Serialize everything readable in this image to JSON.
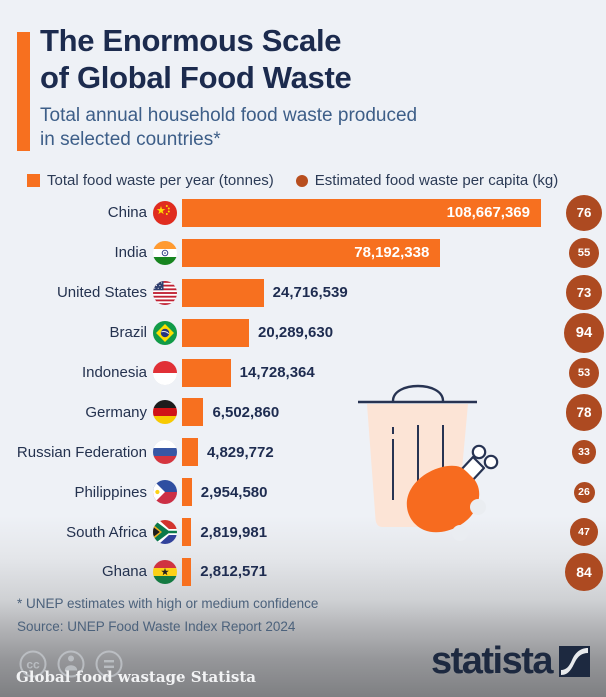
{
  "header": {
    "title_line1": "The Enormous Scale",
    "title_line2": "of Global Food Waste",
    "subtitle_line1": "Total annual household food waste produced",
    "subtitle_line2": "in selected countries*"
  },
  "legend": {
    "bar_label": "Total food waste per year (tonnes)",
    "circle_label": "Estimated food waste per capita (kg)"
  },
  "chart_data": {
    "type": "bar",
    "orientation": "horizontal",
    "title": "The Enormous Scale of Global Food Waste",
    "subtitle": "Total annual household food waste produced in selected countries*",
    "categories": [
      "China",
      "India",
      "United States",
      "Brazil",
      "Indonesia",
      "Germany",
      "Russian Federation",
      "Philippines",
      "South Africa",
      "Ghana"
    ],
    "series": [
      {
        "name": "Total food waste per year (tonnes)",
        "values": [
          108667369,
          78192338,
          24716539,
          20289630,
          14728364,
          6502860,
          4829772,
          2954580,
          2819981,
          2812571
        ]
      },
      {
        "name": "Estimated food waste per capita (kg)",
        "values": [
          76,
          55,
          73,
          94,
          53,
          78,
          33,
          26,
          47,
          84
        ]
      }
    ],
    "max_tonnes": 108667369,
    "rows": [
      {
        "country": "China",
        "flag": "cn",
        "tonnes": 108667369,
        "tonnes_label": "108,667,369",
        "per_capita": 76,
        "value_inside_bar": true
      },
      {
        "country": "India",
        "flag": "in",
        "tonnes": 78192338,
        "tonnes_label": "78,192,338",
        "per_capita": 55,
        "value_inside_bar": true
      },
      {
        "country": "United States",
        "flag": "us",
        "tonnes": 24716539,
        "tonnes_label": "24,716,539",
        "per_capita": 73,
        "value_inside_bar": false
      },
      {
        "country": "Brazil",
        "flag": "br",
        "tonnes": 20289630,
        "tonnes_label": "20,289,630",
        "per_capita": 94,
        "value_inside_bar": false
      },
      {
        "country": "Indonesia",
        "flag": "id",
        "tonnes": 14728364,
        "tonnes_label": "14,728,364",
        "per_capita": 53,
        "value_inside_bar": false
      },
      {
        "country": "Germany",
        "flag": "de",
        "tonnes": 6502860,
        "tonnes_label": "6,502,860",
        "per_capita": 78,
        "value_inside_bar": false
      },
      {
        "country": "Russian Federation",
        "flag": "ru",
        "tonnes": 4829772,
        "tonnes_label": "4,829,772",
        "per_capita": 33,
        "value_inside_bar": false
      },
      {
        "country": "Philippines",
        "flag": "ph",
        "tonnes": 2954580,
        "tonnes_label": "2,954,580",
        "per_capita": 26,
        "value_inside_bar": false
      },
      {
        "country": "South Africa",
        "flag": "za",
        "tonnes": 2819981,
        "tonnes_label": "2,819,981",
        "per_capita": 47,
        "value_inside_bar": false
      },
      {
        "country": "Ghana",
        "flag": "gh",
        "tonnes": 2812571,
        "tonnes_label": "2,812,571",
        "per_capita": 84,
        "value_inside_bar": false
      }
    ]
  },
  "footnotes": {
    "note": "* UNEP estimates with high or medium confidence",
    "source": "Source: UNEP Food Waste Index Report 2024"
  },
  "footer": {
    "brand": "statista",
    "caption": "Global food wastage Statista",
    "license_icons": [
      "cc-icon",
      "attribution-icon",
      "equal-icon"
    ]
  },
  "colors": {
    "background": "#eef1f6",
    "bar_orange": "#f7701f",
    "circle_rust": "#ad4a21",
    "title_navy": "#1c2b4e",
    "subtitle_steel": "#3d5e88",
    "illustration_peach": "#fce4d6",
    "illustration_outline": "#273352",
    "brand_navy": "#1d2940"
  }
}
